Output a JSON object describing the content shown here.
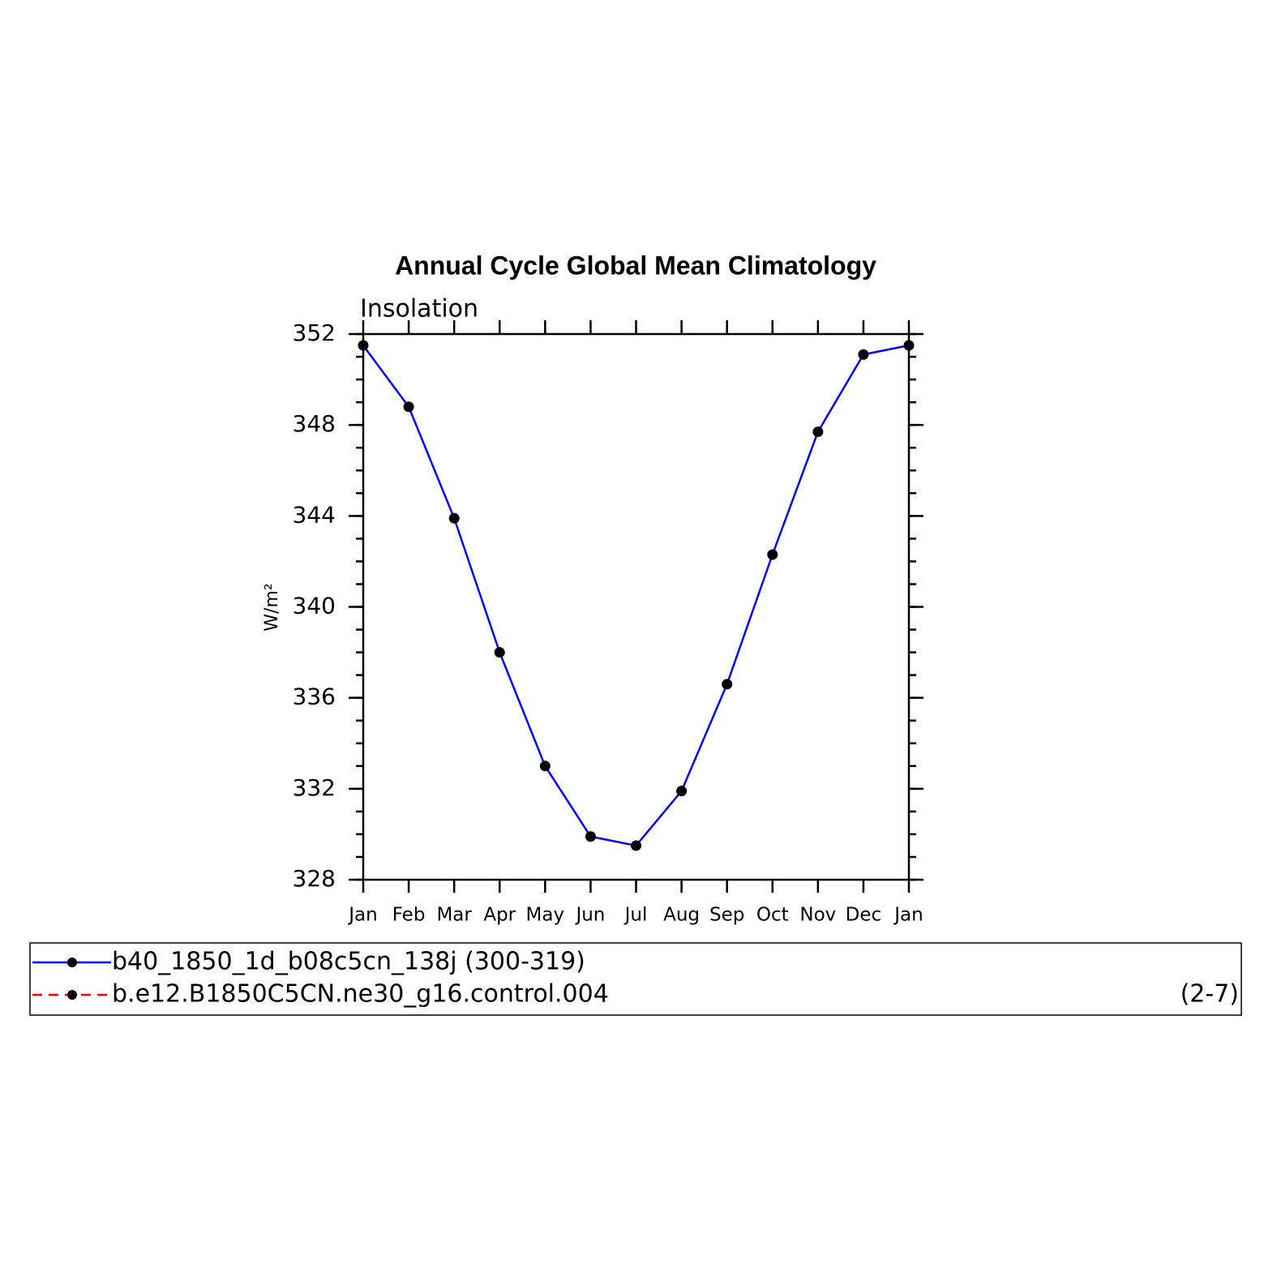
{
  "chart_data": {
    "type": "line",
    "title": "Annual Cycle Global Mean Climatology",
    "subtitle": "Insolation",
    "y_label": "W/m²",
    "categories": [
      "Jan",
      "Feb",
      "Mar",
      "Apr",
      "May",
      "Jun",
      "Jul",
      "Aug",
      "Sep",
      "Oct",
      "Nov",
      "Dec",
      "Jan"
    ],
    "series": [
      {
        "name": "b40_1850_1d_b08c5cn_138j (300-319)",
        "color": "#0000ff",
        "dash": false,
        "values": [
          351.5,
          348.8,
          343.9,
          338.0,
          333.0,
          329.9,
          329.5,
          331.9,
          336.6,
          342.3,
          347.7,
          351.1,
          351.5
        ]
      },
      {
        "name": "b.e12.B1850C5CN.ne30_g16.control.004",
        "color": "#ff0000",
        "dash": true,
        "values": [
          null,
          null,
          null,
          null,
          null,
          null,
          null,
          null,
          null,
          null,
          null,
          null,
          null
        ]
      }
    ],
    "legend_note": "(2-7)",
    "ylim": [
      328,
      352
    ],
    "yticks": [
      328,
      332,
      336,
      340,
      344,
      348,
      352
    ],
    "marker_color": "#000000"
  }
}
